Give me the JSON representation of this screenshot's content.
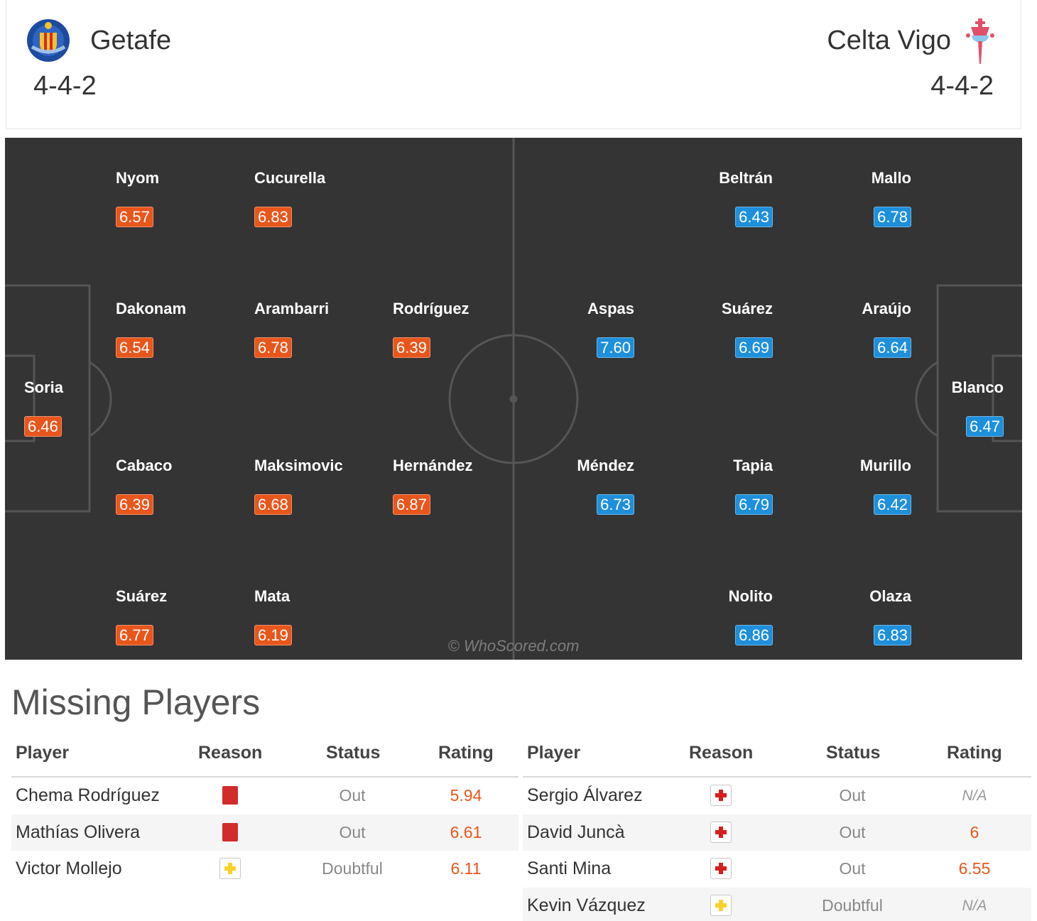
{
  "home": {
    "name": "Getafe",
    "formation": "4-4-2",
    "rating_color": "#e8561c",
    "players": [
      {
        "name": "Nyom",
        "rating": "6.57"
      },
      {
        "name": "Cucurella",
        "rating": "6.83"
      },
      {
        "name": "Dakonam",
        "rating": "6.54"
      },
      {
        "name": "Arambarri",
        "rating": "6.78"
      },
      {
        "name": "Rodríguez",
        "rating": "6.39"
      },
      {
        "name": "Soria",
        "rating": "6.46"
      },
      {
        "name": "Cabaco",
        "rating": "6.39"
      },
      {
        "name": "Maksimovic",
        "rating": "6.68"
      },
      {
        "name": "Hernández",
        "rating": "6.87"
      },
      {
        "name": "Suárez",
        "rating": "6.77"
      },
      {
        "name": "Mata",
        "rating": "6.19"
      }
    ]
  },
  "away": {
    "name": "Celta Vigo",
    "formation": "4-4-2",
    "rating_color": "#1e8fdb",
    "players": [
      {
        "name": "Beltrán",
        "rating": "6.43"
      },
      {
        "name": "Mallo",
        "rating": "6.78"
      },
      {
        "name": "Aspas",
        "rating": "7.60"
      },
      {
        "name": "Suárez",
        "rating": "6.69"
      },
      {
        "name": "Araújo",
        "rating": "6.64"
      },
      {
        "name": "Blanco",
        "rating": "6.47"
      },
      {
        "name": "Méndez",
        "rating": "6.73"
      },
      {
        "name": "Tapia",
        "rating": "6.79"
      },
      {
        "name": "Murillo",
        "rating": "6.42"
      },
      {
        "name": "Nolito",
        "rating": "6.86"
      },
      {
        "name": "Olaza",
        "rating": "6.83"
      }
    ]
  },
  "watermark": "© WhoScored.com",
  "missing": {
    "title": "Missing Players",
    "headers": {
      "player": "Player",
      "reason": "Reason",
      "status": "Status",
      "rating": "Rating"
    },
    "home": [
      {
        "player": "Chema Rodríguez",
        "reason": "red-card-icon",
        "status": "Out",
        "rating": "5.94"
      },
      {
        "player": "Mathías Olivera",
        "reason": "red-card-icon",
        "status": "Out",
        "rating": "6.61"
      },
      {
        "player": "Victor Mollejo",
        "reason": "doubtful-icon",
        "status": "Doubtful",
        "rating": "6.11"
      }
    ],
    "away": [
      {
        "player": "Sergio Álvarez",
        "reason": "injury-icon",
        "status": "Out",
        "rating": "N/A"
      },
      {
        "player": "David Juncà",
        "reason": "injury-icon",
        "status": "Out",
        "rating": "6"
      },
      {
        "player": "Santi Mina",
        "reason": "injury-icon",
        "status": "Out",
        "rating": "6.55"
      },
      {
        "player": "Kevin Vázquez",
        "reason": "doubtful-icon",
        "status": "Doubtful",
        "rating": "N/A"
      }
    ]
  }
}
